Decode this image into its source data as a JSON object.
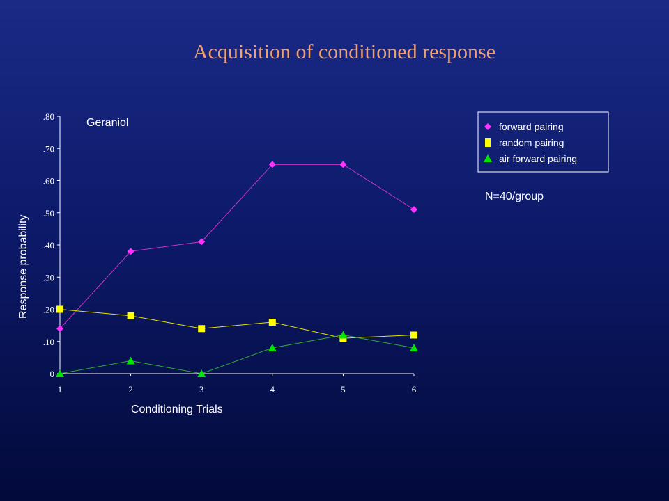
{
  "slide": {
    "title": "Acquisition of conditioned response",
    "sample_note": "N=40/group"
  },
  "chart_data": {
    "type": "line",
    "title": "",
    "annotation": "Geraniol",
    "xlabel": "Conditioning Trials",
    "ylabel": "Response probability",
    "x": [
      1,
      2,
      3,
      4,
      5,
      6
    ],
    "x_tick_labels": [
      "1",
      "2",
      "3",
      "4",
      "5",
      "6"
    ],
    "ylim": [
      0,
      0.8
    ],
    "y_ticks": [
      0,
      0.1,
      0.2,
      0.3,
      0.4,
      0.5,
      0.6,
      0.7,
      0.8
    ],
    "y_tick_labels": [
      "0",
      ".10",
      ".20",
      ".30",
      ".40",
      ".50",
      ".60",
      ".70",
      ".80"
    ],
    "grid": false,
    "legend_position": "top-right",
    "series": [
      {
        "name": "forward pairing",
        "marker": "diamond",
        "color": "#ff33ff",
        "line_color": "#cc33cc",
        "values": [
          0.14,
          0.38,
          0.41,
          0.65,
          0.65,
          0.51
        ]
      },
      {
        "name": "random pairing",
        "marker": "square",
        "color": "#ffff00",
        "line_color": "#e6e600",
        "values": [
          0.2,
          0.18,
          0.14,
          0.16,
          0.11,
          0.12
        ]
      },
      {
        "name": "air forward pairing",
        "marker": "triangle",
        "color": "#00e600",
        "line_color": "#33aa33",
        "values": [
          0.0,
          0.04,
          0.0,
          0.08,
          0.12,
          0.08
        ]
      }
    ]
  }
}
